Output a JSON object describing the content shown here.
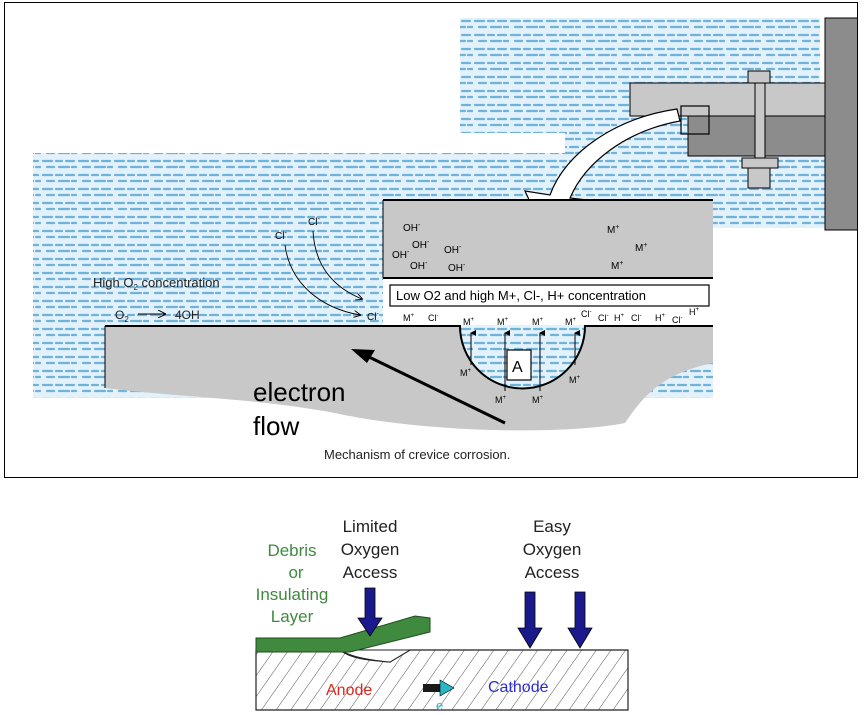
{
  "figure1": {
    "caption": "Mechanism of crevice corrosion.",
    "high_o2_label": "High O",
    "high_o2_sub": "2",
    "high_o2_suffix": " concentration",
    "reaction_o2": "O",
    "reaction_o2_sub": "2",
    "reaction_product": "4OH",
    "crevice_label": "Low O2 and high M+, Cl-, H+ concentration",
    "electron_flow_line1": "electron",
    "electron_flow_line2": "flow",
    "anode_box_label": "A",
    "ions": {
      "oh": "OH",
      "oh_charge": "-",
      "metal": "M",
      "metal_charge": "+",
      "chloride": "Cl",
      "chloride_charge": "-",
      "hydrogen": "H",
      "hydrogen_charge": "+"
    },
    "colors": {
      "water": "#7ab8dc",
      "water_bg": "#d5ebf7",
      "metal": "#c8c8c8",
      "dark_metal": "#8c8c8c"
    }
  },
  "figure2": {
    "debris_lines": [
      "Debris",
      "or",
      "Insulating",
      "Layer"
    ],
    "limited_lines": [
      "Limited",
      "Oxygen",
      "Access"
    ],
    "easy_lines": [
      "Easy",
      "Oxygen",
      "Access"
    ],
    "anode": "Anode",
    "cathode": "Cathode",
    "electron": "e",
    "colors": {
      "debris": "#3f8a3f",
      "arrow": "#1a1a8c",
      "anode": "#e0241b",
      "cathode": "#2a2ad6",
      "electron": "#29b6c6"
    }
  }
}
